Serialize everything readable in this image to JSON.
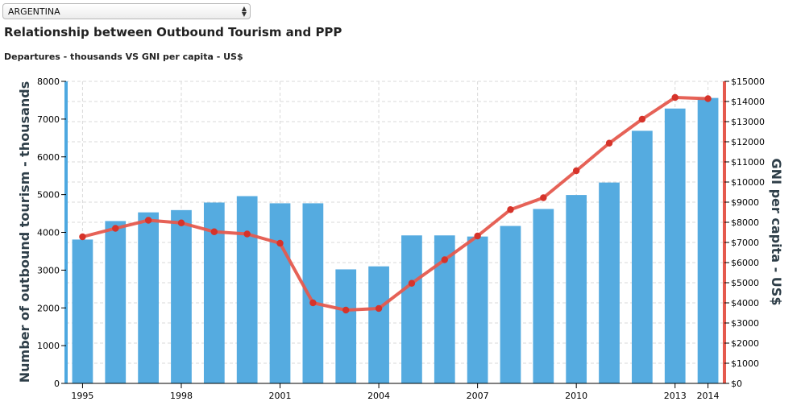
{
  "selector": {
    "value": "ARGENTINA"
  },
  "header": {
    "title": "Relationship between Outbound Tourism and PPP",
    "subtitle": "Departures - thousands VS GNI per capita - US$"
  },
  "colors": {
    "bars": "#55abe0",
    "line": "#e55a4e",
    "line_points": "#d6332a",
    "left_axis": "#4da8e0",
    "right_axis": "#e55a4e",
    "grid": "#d9d9d9"
  },
  "chart_data": {
    "type": "bar",
    "categories": [
      "1995",
      "1996",
      "1997",
      "1998",
      "1999",
      "2000",
      "2001",
      "2002",
      "2003",
      "2004",
      "2005",
      "2006",
      "2007",
      "2008",
      "2009",
      "2010",
      "2011",
      "2012",
      "2013",
      "2014"
    ],
    "x_tick_labels": [
      "1995",
      "1998",
      "2001",
      "2004",
      "2007",
      "2010",
      "2013",
      "2014"
    ],
    "series": [
      {
        "type": "bar",
        "axis": "left",
        "values": [
          3810,
          4300,
          4530,
          4590,
          4790,
          4960,
          4770,
          4770,
          3020,
          3100,
          3920,
          3920,
          3890,
          4170,
          4620,
          4990,
          5320,
          6690,
          7280,
          7560
        ]
      },
      {
        "type": "line",
        "axis": "right",
        "values": [
          7280,
          7700,
          8100,
          7970,
          7530,
          7420,
          6960,
          4000,
          3640,
          3720,
          4970,
          6140,
          7320,
          8630,
          9220,
          10560,
          11930,
          13120,
          14200,
          14140
        ]
      }
    ],
    "left_axis": {
      "label": "Number of outbound tourism - thousands",
      "ylim": [
        0,
        8000
      ],
      "ticks": [
        "0",
        "1000",
        "2000",
        "3000",
        "4000",
        "5000",
        "6000",
        "7000",
        "8000"
      ]
    },
    "right_axis": {
      "label": "GNI per capita - US$",
      "ylim": [
        0,
        15000
      ],
      "ticks": [
        "$0",
        "$1000",
        "$2000",
        "$3000",
        "$4000",
        "$5000",
        "$6000",
        "$7000",
        "$8000",
        "$9000",
        "$10000",
        "$11000",
        "$12000",
        "$13000",
        "$14000",
        "$15000"
      ]
    },
    "grid": true
  }
}
